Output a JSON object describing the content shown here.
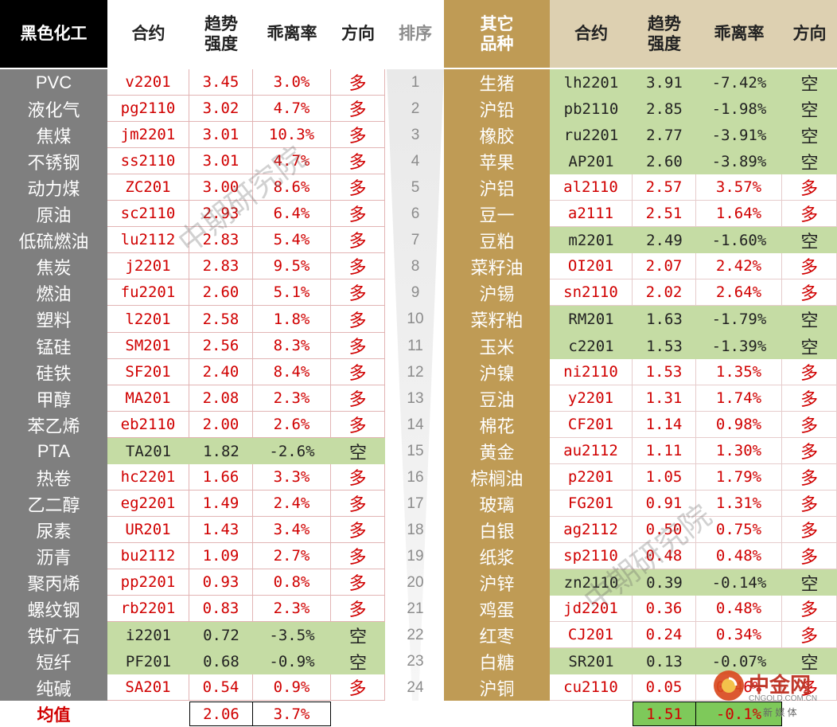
{
  "left_header": {
    "category": "黑色化工",
    "contract": "合约",
    "strength": "趋势\n强度",
    "deviation": "乖离率",
    "direction": "方向"
  },
  "rank_header": "排序",
  "right_header": {
    "category": "其它\n品种",
    "contract": "合约",
    "strength": "趋势\n强度",
    "deviation": "乖离率",
    "direction": "方向"
  },
  "left_rows": [
    {
      "name": "PVC",
      "contract": "v2201",
      "strength": "3.45",
      "deviation": "3.0%",
      "direction": "多"
    },
    {
      "name": "液化气",
      "contract": "pg2110",
      "strength": "3.02",
      "deviation": "4.7%",
      "direction": "多"
    },
    {
      "name": "焦煤",
      "contract": "jm2201",
      "strength": "3.01",
      "deviation": "10.3%",
      "direction": "多"
    },
    {
      "name": "不锈钢",
      "contract": "ss2110",
      "strength": "3.01",
      "deviation": "4.7%",
      "direction": "多"
    },
    {
      "name": "动力煤",
      "contract": "ZC201",
      "strength": "3.00",
      "deviation": "8.6%",
      "direction": "多"
    },
    {
      "name": "原油",
      "contract": "sc2110",
      "strength": "2.93",
      "deviation": "6.4%",
      "direction": "多"
    },
    {
      "name": "低硫燃油",
      "contract": "lu2112",
      "strength": "2.83",
      "deviation": "5.4%",
      "direction": "多"
    },
    {
      "name": "焦炭",
      "contract": "j2201",
      "strength": "2.83",
      "deviation": "9.5%",
      "direction": "多"
    },
    {
      "name": "燃油",
      "contract": "fu2201",
      "strength": "2.60",
      "deviation": "5.1%",
      "direction": "多"
    },
    {
      "name": "塑料",
      "contract": "l2201",
      "strength": "2.58",
      "deviation": "1.8%",
      "direction": "多"
    },
    {
      "name": "锰硅",
      "contract": "SM201",
      "strength": "2.56",
      "deviation": "8.3%",
      "direction": "多"
    },
    {
      "name": "硅铁",
      "contract": "SF201",
      "strength": "2.40",
      "deviation": "8.4%",
      "direction": "多"
    },
    {
      "name": "甲醇",
      "contract": "MA201",
      "strength": "2.08",
      "deviation": "2.3%",
      "direction": "多"
    },
    {
      "name": "苯乙烯",
      "contract": "eb2110",
      "strength": "2.00",
      "deviation": "2.6%",
      "direction": "多"
    },
    {
      "name": "PTA",
      "contract": "TA201",
      "strength": "1.82",
      "deviation": "-2.6%",
      "direction": "空"
    },
    {
      "name": "热卷",
      "contract": "hc2201",
      "strength": "1.66",
      "deviation": "3.3%",
      "direction": "多"
    },
    {
      "name": "乙二醇",
      "contract": "eg2201",
      "strength": "1.49",
      "deviation": "2.4%",
      "direction": "多"
    },
    {
      "name": "尿素",
      "contract": "UR201",
      "strength": "1.43",
      "deviation": "3.4%",
      "direction": "多"
    },
    {
      "name": "沥青",
      "contract": "bu2112",
      "strength": "1.09",
      "deviation": "2.7%",
      "direction": "多"
    },
    {
      "name": "聚丙烯",
      "contract": "pp2201",
      "strength": "0.93",
      "deviation": "0.8%",
      "direction": "多"
    },
    {
      "name": "螺纹钢",
      "contract": "rb2201",
      "strength": "0.83",
      "deviation": "2.3%",
      "direction": "多"
    },
    {
      "name": "铁矿石",
      "contract": "i2201",
      "strength": "0.72",
      "deviation": "-3.5%",
      "direction": "空"
    },
    {
      "name": "短纤",
      "contract": "PF201",
      "strength": "0.68",
      "deviation": "-0.9%",
      "direction": "空"
    },
    {
      "name": "纯碱",
      "contract": "SA201",
      "strength": "0.54",
      "deviation": "0.9%",
      "direction": "多"
    }
  ],
  "ranks": [
    "1",
    "2",
    "3",
    "4",
    "5",
    "6",
    "7",
    "8",
    "9",
    "10",
    "11",
    "12",
    "13",
    "14",
    "15",
    "16",
    "17",
    "18",
    "19",
    "20",
    "21",
    "22",
    "23",
    "24"
  ],
  "right_rows": [
    {
      "name": "生猪",
      "contract": "lh2201",
      "strength": "3.91",
      "deviation": "-7.42%",
      "direction": "空"
    },
    {
      "name": "沪铅",
      "contract": "pb2110",
      "strength": "2.85",
      "deviation": "-1.98%",
      "direction": "空"
    },
    {
      "name": "橡胶",
      "contract": "ru2201",
      "strength": "2.77",
      "deviation": "-3.91%",
      "direction": "空"
    },
    {
      "name": "苹果",
      "contract": "AP201",
      "strength": "2.60",
      "deviation": "-3.89%",
      "direction": "空"
    },
    {
      "name": "沪铝",
      "contract": "al2110",
      "strength": "2.57",
      "deviation": "3.57%",
      "direction": "多"
    },
    {
      "name": "豆一",
      "contract": "a2111",
      "strength": "2.51",
      "deviation": "1.64%",
      "direction": "多"
    },
    {
      "name": "豆粕",
      "contract": "m2201",
      "strength": "2.49",
      "deviation": "-1.60%",
      "direction": "空"
    },
    {
      "name": "菜籽油",
      "contract": "OI201",
      "strength": "2.07",
      "deviation": "2.42%",
      "direction": "多"
    },
    {
      "name": "沪锡",
      "contract": "sn2110",
      "strength": "2.02",
      "deviation": "2.64%",
      "direction": "多"
    },
    {
      "name": "菜籽粕",
      "contract": "RM201",
      "strength": "1.63",
      "deviation": "-1.79%",
      "direction": "空"
    },
    {
      "name": "玉米",
      "contract": "c2201",
      "strength": "1.53",
      "deviation": "-1.39%",
      "direction": "空"
    },
    {
      "name": "沪镍",
      "contract": "ni2110",
      "strength": "1.53",
      "deviation": "1.35%",
      "direction": "多"
    },
    {
      "name": "豆油",
      "contract": "y2201",
      "strength": "1.31",
      "deviation": "1.74%",
      "direction": "多"
    },
    {
      "name": "棉花",
      "contract": "CF201",
      "strength": "1.14",
      "deviation": "0.98%",
      "direction": "多"
    },
    {
      "name": "黄金",
      "contract": "au2112",
      "strength": "1.11",
      "deviation": "1.30%",
      "direction": "多"
    },
    {
      "name": "棕榈油",
      "contract": "p2201",
      "strength": "1.05",
      "deviation": "1.79%",
      "direction": "多"
    },
    {
      "name": "玻璃",
      "contract": "FG201",
      "strength": "0.91",
      "deviation": "1.31%",
      "direction": "多"
    },
    {
      "name": "白银",
      "contract": "ag2112",
      "strength": "0.50",
      "deviation": "0.75%",
      "direction": "多"
    },
    {
      "name": "纸浆",
      "contract": "sp2110",
      "strength": "0.48",
      "deviation": "0.48%",
      "direction": "多"
    },
    {
      "name": "沪锌",
      "contract": "zn2110",
      "strength": "0.39",
      "deviation": "-0.14%",
      "direction": "空"
    },
    {
      "name": "鸡蛋",
      "contract": "jd2201",
      "strength": "0.36",
      "deviation": "0.48%",
      "direction": "多"
    },
    {
      "name": "红枣",
      "contract": "CJ201",
      "strength": "0.24",
      "deviation": "0.34%",
      "direction": "多"
    },
    {
      "name": "白糖",
      "contract": "SR201",
      "strength": "0.13",
      "deviation": "-0.07%",
      "direction": "空"
    },
    {
      "name": "沪铜",
      "contract": "cu2110",
      "strength": "0.05",
      "deviation": "0.46%",
      "direction": "多"
    }
  ],
  "footer": {
    "label": "均值",
    "left_strength": "2.06",
    "left_deviation": "3.7%",
    "right_strength": "1.51",
    "right_deviation": "-0.1%"
  },
  "watermark": "中期研究院",
  "logo": {
    "name": "中金网",
    "sub": "新 媒 体",
    "domain": "CNGOLD.COM.CN"
  },
  "colors": {
    "left_dark": "#000000",
    "left_gray": "#7f7f7f",
    "right_gold": "#bf9b55",
    "right_sand": "#ddd0b1",
    "green": "#c5dca4",
    "red": "#d00000",
    "footer_green": "#7ec95a"
  }
}
